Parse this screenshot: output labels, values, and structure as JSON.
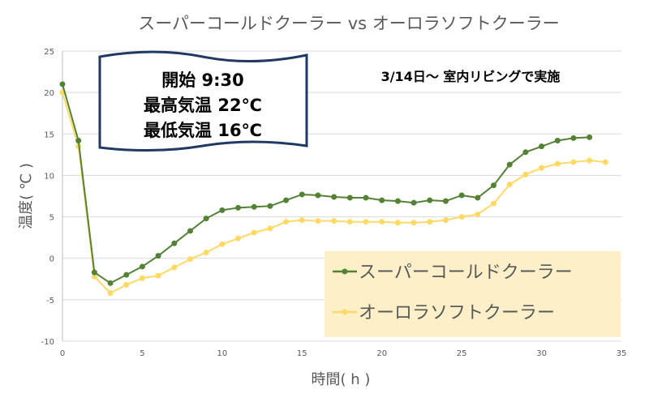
{
  "chart_data": {
    "type": "line",
    "title": "スーパーコールドクーラー vs オーロラソフトクーラー",
    "xlabel": "時間( h )",
    "ylabel": "温度( ℃ )",
    "xlim": [
      0,
      35
    ],
    "ylim": [
      -10,
      25
    ],
    "xticks": [
      0,
      5,
      10,
      15,
      20,
      25,
      30,
      35
    ],
    "yticks": [
      -10,
      -5,
      0,
      5,
      10,
      15,
      20,
      25
    ],
    "grid": true,
    "legend_position": "bottom-right",
    "annotation_box": [
      "開始 9:30",
      "最高気温 22℃",
      "最低気温 16℃"
    ],
    "annotation_text": "3/14日～ 室内リビングで実施",
    "series": [
      {
        "name": "スーパーコールドクーラー",
        "color": "#548235",
        "x": [
          0,
          1,
          2,
          3,
          4,
          5,
          6,
          7,
          8,
          9,
          10,
          11,
          12,
          13,
          14,
          15,
          16,
          17,
          18,
          19,
          20,
          21,
          22,
          23,
          24,
          25,
          26,
          27,
          28,
          29,
          30,
          31,
          32,
          33
        ],
        "y": [
          21,
          14.2,
          -1.7,
          -3.0,
          -2.0,
          -1.0,
          0.3,
          1.8,
          3.3,
          4.8,
          5.8,
          6.1,
          6.2,
          6.3,
          7.0,
          7.7,
          7.6,
          7.4,
          7.3,
          7.3,
          7.0,
          6.9,
          6.7,
          7.0,
          6.9,
          7.6,
          7.3,
          8.8,
          11.3,
          12.8,
          13.5,
          14.2,
          14.5,
          14.6
        ]
      },
      {
        "name": "オーロラソフトクーラー",
        "color": "#ffd966",
        "x": [
          0,
          1,
          2,
          3,
          4,
          5,
          6,
          7,
          8,
          9,
          10,
          11,
          12,
          13,
          14,
          15,
          16,
          17,
          18,
          19,
          20,
          21,
          22,
          23,
          24,
          25,
          26,
          27,
          28,
          29,
          30,
          31,
          32,
          33,
          34
        ],
        "y": [
          20,
          13.5,
          -2.2,
          -4.2,
          -3.2,
          -2.4,
          -2.1,
          -1.1,
          -0.1,
          0.7,
          1.7,
          2.4,
          3.1,
          3.6,
          4.4,
          4.6,
          4.5,
          4.5,
          4.4,
          4.4,
          4.4,
          4.3,
          4.3,
          4.4,
          4.6,
          5.0,
          5.3,
          6.6,
          8.9,
          10.1,
          10.9,
          11.4,
          11.6,
          11.8,
          11.6
        ]
      }
    ]
  }
}
